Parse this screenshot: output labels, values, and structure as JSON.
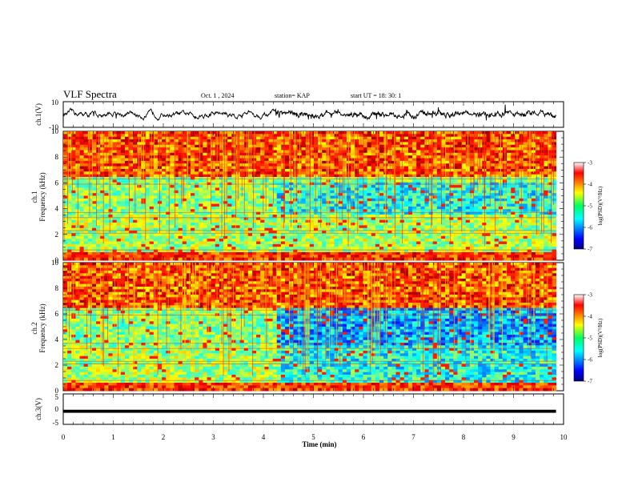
{
  "header": {
    "title": "VLF Spectra",
    "date": "Oct. 1 , 2024",
    "station": "station= KAP",
    "start": "start  UT =   18: 30: 1"
  },
  "chart_data": [
    {
      "type": "line",
      "ylabel": "ch.1(V)",
      "xlim": [
        0,
        10
      ],
      "ylim": [
        -10,
        10
      ],
      "yticks": [
        "10",
        "-10"
      ],
      "series": [
        {
          "values_note": "",
          "color": "#000000"
        }
      ]
    },
    {
      "type": "heatmap",
      "ylabel": "ch.1\nFrequency (kHz)",
      "ylabel_line1": "ch.1",
      "ylabel_line2": "Frequency (kHz)",
      "xlim": [
        0,
        9.85
      ],
      "ylim": [
        0,
        10
      ],
      "yticks": [
        "0",
        "2",
        "4",
        "6",
        "8",
        "10"
      ],
      "colorbar": {
        "label": "log(PSD)(V²/Hz)",
        "range": [
          -7,
          -3
        ],
        "ticks": [
          "-3",
          "-4",
          "-5",
          "-6",
          "-7"
        ]
      }
    },
    {
      "type": "heatmap",
      "ylabel_line1": "ch.2",
      "ylabel_line2": "Frequency (kHz)",
      "xlim": [
        0,
        9.85
      ],
      "ylim": [
        0,
        10
      ],
      "yticks": [
        "0",
        "2",
        "4",
        "6",
        "8",
        "10"
      ],
      "colorbar": {
        "label": "log(PSD)(V²/Hz)",
        "range": [
          -7,
          -3
        ],
        "ticks": [
          "-3",
          "-4",
          "-5",
          "-6",
          "-7"
        ]
      }
    },
    {
      "type": "line",
      "ylabel": "ch.3(V)",
      "xlim": [
        0,
        10
      ],
      "ylim": [
        -5,
        5
      ],
      "yticks": [
        "5",
        "0",
        "-5"
      ],
      "series": [
        {
          "band": [
            -1.2,
            -0.2
          ],
          "color": "#000000"
        }
      ]
    }
  ],
  "xaxis": {
    "label": "Time  (min)",
    "ticks": [
      "0",
      "1",
      "2",
      "3",
      "4",
      "5",
      "6",
      "7",
      "8",
      "9",
      "10"
    ],
    "range": [
      0,
      10
    ]
  }
}
